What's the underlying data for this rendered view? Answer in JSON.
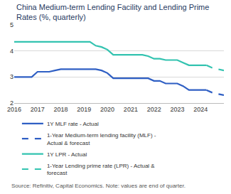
{
  "chart_data": {
    "type": "line",
    "title": "China Medium-term Lending Facility and Lending Prime Rates (%, quarterly)",
    "annotations": [
      "Source: Refinitiv, Capital Economics. Note: values are end of quarter."
    ],
    "x": [
      2016,
      2016.25,
      2016.5,
      2016.75,
      2017,
      2017.25,
      2017.5,
      2017.75,
      2018,
      2018.25,
      2018.5,
      2018.75,
      2019,
      2019.25,
      2019.5,
      2019.75,
      2020,
      2020.25,
      2020.5,
      2020.75,
      2021,
      2021.25,
      2021.5,
      2021.75,
      2022,
      2022.25,
      2022.5,
      2022.75,
      2023,
      2023.25,
      2023.5,
      2023.75,
      2024,
      2024.25,
      2024.5,
      2024.75,
      2025
    ],
    "series": [
      {
        "name": "1Y MLF rate - Actual",
        "color": "#2f5fc4",
        "line_style": "solid",
        "values": [
          3.0,
          3.0,
          3.0,
          3.0,
          3.2,
          3.2,
          3.2,
          3.25,
          3.3,
          3.3,
          3.3,
          3.3,
          3.3,
          3.3,
          3.3,
          3.25,
          3.15,
          2.95,
          2.95,
          2.95,
          2.95,
          2.95,
          2.95,
          2.95,
          2.85,
          2.85,
          2.75,
          2.75,
          2.75,
          2.65,
          2.5,
          2.5,
          2.5,
          2.5,
          null,
          null,
          null
        ]
      },
      {
        "name": "1-Year Medium-term lending facility (MLF) - Actual & forecast",
        "color": "#2f5fc4",
        "line_style": "dash",
        "values": [
          null,
          null,
          null,
          null,
          null,
          null,
          null,
          null,
          null,
          null,
          null,
          null,
          null,
          null,
          null,
          null,
          null,
          null,
          null,
          null,
          null,
          null,
          null,
          null,
          null,
          null,
          null,
          null,
          null,
          null,
          null,
          null,
          null,
          2.5,
          2.4,
          2.35,
          2.3
        ]
      },
      {
        "name": "1Y LPR - Actual",
        "color": "#33c3b0",
        "line_style": "solid",
        "values": [
          4.35,
          4.35,
          4.35,
          4.35,
          4.35,
          4.35,
          4.35,
          4.35,
          4.35,
          4.35,
          4.35,
          4.35,
          4.35,
          4.35,
          4.2,
          4.15,
          4.05,
          3.85,
          3.85,
          3.85,
          3.85,
          3.85,
          3.85,
          3.8,
          3.7,
          3.7,
          3.65,
          3.65,
          3.65,
          3.55,
          3.45,
          3.45,
          3.45,
          3.45,
          null,
          null,
          null
        ]
      },
      {
        "name": "1-Year Lending prime rate (LPR) - Actual & forecast",
        "color": "#33c3b0",
        "line_style": "dash",
        "values": [
          null,
          null,
          null,
          null,
          null,
          null,
          null,
          null,
          null,
          null,
          null,
          null,
          null,
          null,
          null,
          null,
          null,
          null,
          null,
          null,
          null,
          null,
          null,
          null,
          null,
          null,
          null,
          null,
          null,
          null,
          null,
          null,
          null,
          3.45,
          3.35,
          3.3,
          3.25
        ]
      }
    ],
    "xlim": [
      2016,
      2025
    ],
    "xticks": [
      2016,
      2017,
      2018,
      2019,
      2020,
      2021,
      2022,
      2023,
      2024
    ],
    "ylim": [
      2,
      5
    ],
    "yticks": [
      2,
      3,
      4,
      5
    ],
    "grid": true,
    "legend": "bottom"
  }
}
